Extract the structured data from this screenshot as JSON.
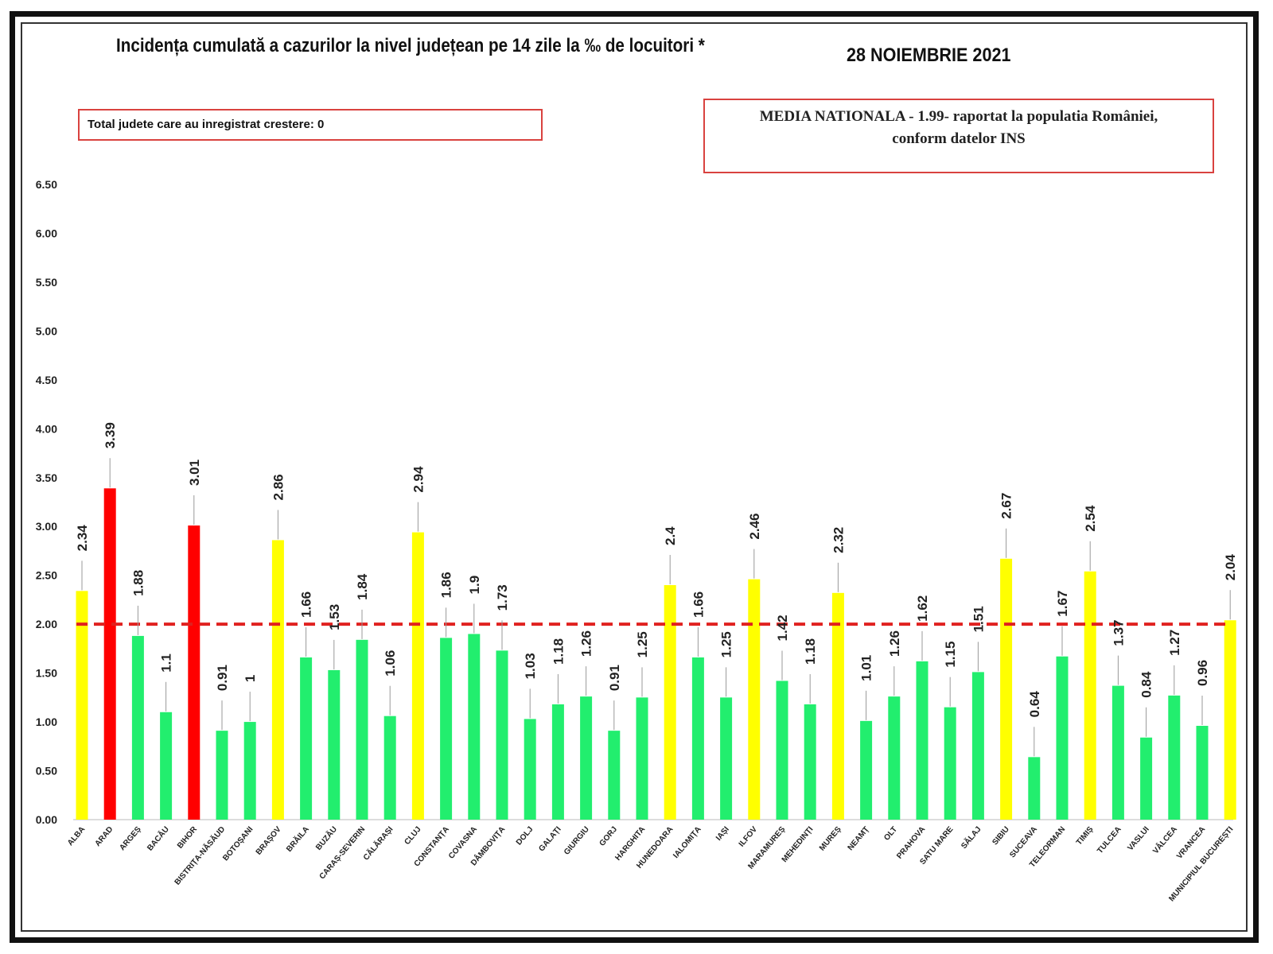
{
  "header": {
    "title": "Incidența cumulată a cazurilor la nivel județean pe 14 zile la ‰ de locuitori *",
    "date": "28 NOIEMBRIE 2021"
  },
  "info_left": "Total judete care au inregistrat crestere: 0",
  "info_right": {
    "line1": "MEDIA NATIONALA - 1.99-  raportat la populatia României,",
    "line2": "conform datelor INS"
  },
  "colors": {
    "yellow": "#ffff00",
    "red": "#ff0000",
    "green": "#22ee6e",
    "reference": "#e0211f"
  },
  "chart_data": {
    "type": "bar",
    "title": "Incidența cumulată a cazurilor la nivel județean pe 14 zile la ‰ de locuitori *",
    "xlabel": "",
    "ylabel": "",
    "ylim": [
      0,
      6.5
    ],
    "yticks": [
      "0.00",
      "0.50",
      "1.00",
      "1.50",
      "2.00",
      "2.50",
      "3.00",
      "3.50",
      "4.00",
      "4.50",
      "5.00",
      "5.50",
      "6.00",
      "6.50"
    ],
    "reference_line": 2.0,
    "categories": [
      "ALBA",
      "ARAD",
      "ARGEȘ",
      "BACĂU",
      "BIHOR",
      "BISTRIȚA-NĂSĂUD",
      "BOTOȘANI",
      "BRAȘOV",
      "BRĂILA",
      "BUZĂU",
      "CARAȘ-SEVERIN",
      "CĂLĂRAȘI",
      "CLUJ",
      "CONSTANȚA",
      "COVASNA",
      "DÂMBOVIȚA",
      "DOLJ",
      "GALAȚI",
      "GIURGIU",
      "GORJ",
      "HARGHITA",
      "HUNEDOARA",
      "IALOMIȚA",
      "IAȘI",
      "ILFOV",
      "MARAMUREȘ",
      "MEHEDINȚI",
      "MUREȘ",
      "NEAMȚ",
      "OLT",
      "PRAHOVA",
      "SATU MARE",
      "SĂLAJ",
      "SIBIU",
      "SUCEAVA",
      "TELEORMAN",
      "TIMIȘ",
      "TULCEA",
      "VASLUI",
      "VÂLCEA",
      "VRANCEA",
      "MUNICIPIUL BUCUREȘTI"
    ],
    "values": [
      2.34,
      3.39,
      1.88,
      1.1,
      3.01,
      0.91,
      1,
      2.86,
      1.66,
      1.53,
      1.84,
      1.06,
      2.94,
      1.86,
      1.9,
      1.73,
      1.03,
      1.18,
      1.26,
      0.91,
      1.25,
      2.4,
      1.66,
      1.25,
      2.46,
      1.42,
      1.18,
      2.32,
      1.01,
      1.26,
      1.62,
      1.15,
      1.51,
      2.67,
      0.64,
      1.67,
      2.54,
      1.37,
      0.84,
      1.27,
      0.96,
      2.04
    ],
    "value_labels": [
      "2.34",
      "3.39",
      "1.88",
      "1.1",
      "3.01",
      "0.91",
      "1",
      "2.86",
      "1.66",
      "1.53",
      "1.84",
      "1.06",
      "2.94",
      "1.86",
      "1.9",
      "1.73",
      "1.03",
      "1.18",
      "1.26",
      "0.91",
      "1.25",
      "2.4",
      "1.66",
      "1.25",
      "2.46",
      "1.42",
      "1.18",
      "2.32",
      "1.01",
      "1.26",
      "1.62",
      "1.15",
      "1.51",
      "2.67",
      "0.64",
      "1.67",
      "2.54",
      "1.37",
      "0.84",
      "1.27",
      "0.96",
      "2.04"
    ],
    "bar_colors": [
      "yellow",
      "red",
      "green",
      "green",
      "red",
      "green",
      "green",
      "yellow",
      "green",
      "green",
      "green",
      "green",
      "yellow",
      "green",
      "green",
      "green",
      "green",
      "green",
      "green",
      "green",
      "green",
      "yellow",
      "green",
      "green",
      "yellow",
      "green",
      "green",
      "yellow",
      "green",
      "green",
      "green",
      "green",
      "green",
      "yellow",
      "green",
      "green",
      "yellow",
      "green",
      "green",
      "green",
      "green",
      "yellow"
    ]
  }
}
